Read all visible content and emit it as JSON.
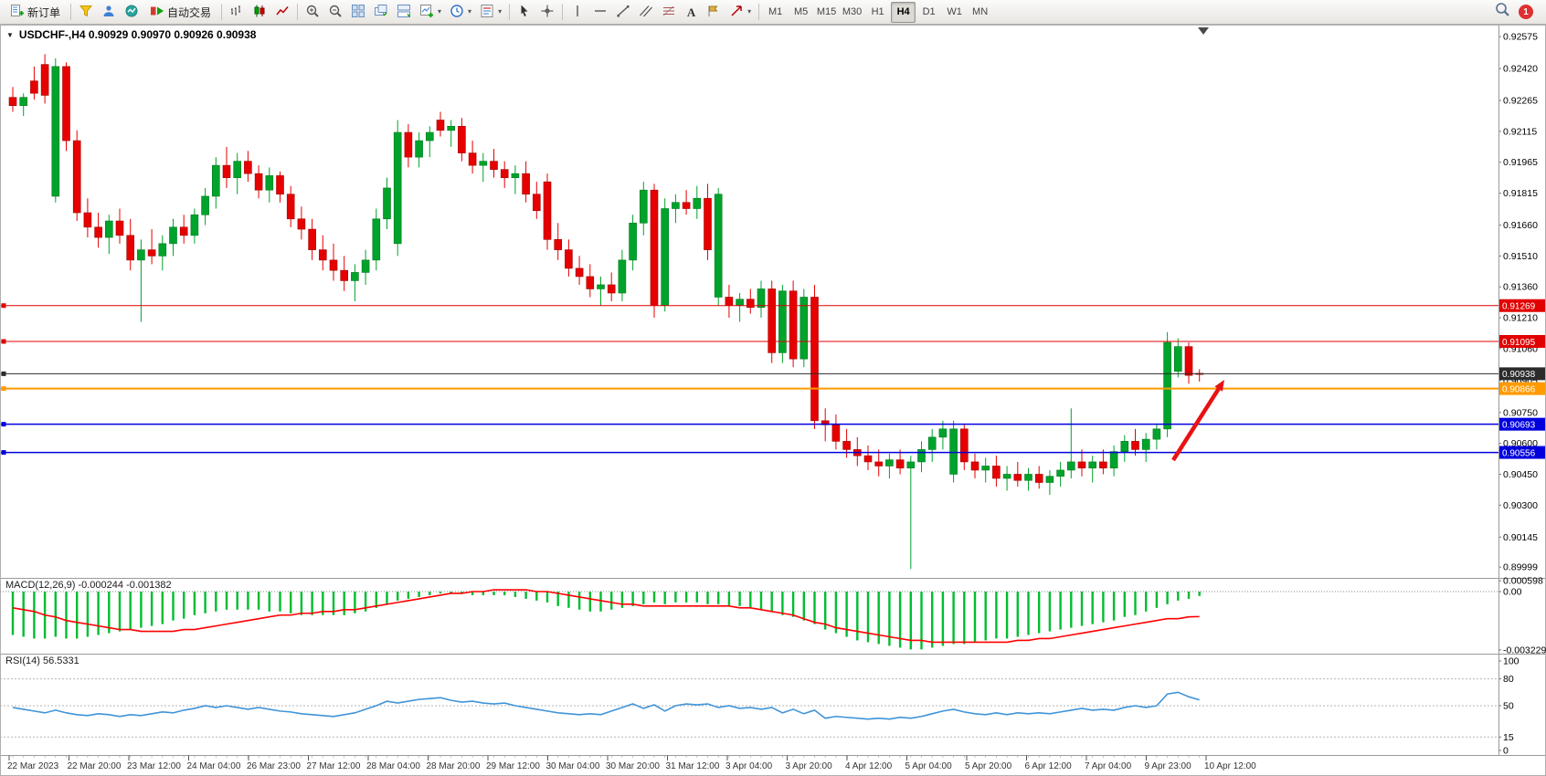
{
  "toolbar": {
    "new_order_label": "新订单",
    "auto_trading_label": "自动交易",
    "timeframes": [
      "M1",
      "M5",
      "M15",
      "M30",
      "H1",
      "H4",
      "D1",
      "W1",
      "MN"
    ],
    "active_timeframe": "H4",
    "notification_badge": "1",
    "glyphs": {
      "caret": "▾",
      "text_tool": "A"
    }
  },
  "chart_data": {
    "type": "candlestick",
    "symbol": "USDCHF",
    "timeframe": "H4",
    "title": "USDCHF-,H4  0.90929 0.90970 0.90926 0.90938",
    "collapse_marker": "▼",
    "colors": {
      "bull": "#00a32b",
      "bull_edge": "#00791f",
      "bear": "#e60000",
      "bear_edge": "#a30000",
      "macd_bar": "#00bd2f",
      "macd_signal": "#ff0000",
      "rsi_line": "#4094d8",
      "arrow": "#e81212"
    },
    "price_axis_labels": [
      "0.92575",
      "0.92420",
      "0.92265",
      "0.92115",
      "0.91965",
      "0.91815",
      "0.91660",
      "0.91510",
      "0.91360",
      "0.91210",
      "0.91060",
      "0.90905",
      "0.90750",
      "0.90600",
      "0.90450",
      "0.90300",
      "0.90145",
      "0.89999"
    ],
    "levels": [
      {
        "price": 0.91269,
        "label": "0.91269",
        "color": "#e00000",
        "width": 1
      },
      {
        "price": 0.91095,
        "label": "0.91095",
        "color": "#e00000",
        "width": 1
      },
      {
        "price": 0.90938,
        "label": "0.90938",
        "color": "#2b2b2b",
        "width": 1
      },
      {
        "price": 0.90866,
        "label": "0.90866",
        "color": "#ff9a00",
        "width": 2
      },
      {
        "price": 0.90693,
        "label": "0.90693",
        "color": "#0000dd",
        "width": 1.5
      },
      {
        "price": 0.90556,
        "label": "0.90556",
        "color": "#0000dd",
        "width": 1.5
      }
    ],
    "candles": [
      [
        0.9228,
        0.9233,
        0.9221,
        0.9224
      ],
      [
        0.9224,
        0.923,
        0.9219,
        0.9228
      ],
      [
        0.9236,
        0.9243,
        0.9227,
        0.923
      ],
      [
        0.9244,
        0.9249,
        0.9225,
        0.9229
      ],
      [
        0.918,
        0.9247,
        0.9177,
        0.9243
      ],
      [
        0.9243,
        0.9245,
        0.9202,
        0.9207
      ],
      [
        0.9207,
        0.9212,
        0.9168,
        0.9172
      ],
      [
        0.9172,
        0.9179,
        0.916,
        0.9165
      ],
      [
        0.9165,
        0.9172,
        0.9155,
        0.916
      ],
      [
        0.916,
        0.9171,
        0.9152,
        0.9168
      ],
      [
        0.9168,
        0.9174,
        0.9157,
        0.9161
      ],
      [
        0.9161,
        0.9169,
        0.9144,
        0.9149
      ],
      [
        0.9149,
        0.9159,
        0.9119,
        0.9154
      ],
      [
        0.9154,
        0.9164,
        0.9147,
        0.9151
      ],
      [
        0.9151,
        0.9161,
        0.9144,
        0.9157
      ],
      [
        0.9157,
        0.9169,
        0.9151,
        0.9165
      ],
      [
        0.9165,
        0.9171,
        0.9157,
        0.9161
      ],
      [
        0.9161,
        0.9174,
        0.9157,
        0.9171
      ],
      [
        0.9171,
        0.9184,
        0.9166,
        0.918
      ],
      [
        0.918,
        0.9199,
        0.9174,
        0.9195
      ],
      [
        0.9195,
        0.9204,
        0.9184,
        0.9189
      ],
      [
        0.9189,
        0.9201,
        0.9181,
        0.9197
      ],
      [
        0.9197,
        0.9202,
        0.9187,
        0.9191
      ],
      [
        0.9191,
        0.9195,
        0.9179,
        0.9183
      ],
      [
        0.9183,
        0.9194,
        0.9177,
        0.919
      ],
      [
        0.919,
        0.9192,
        0.9177,
        0.9181
      ],
      [
        0.9181,
        0.9185,
        0.9165,
        0.9169
      ],
      [
        0.9169,
        0.9175,
        0.9159,
        0.9164
      ],
      [
        0.9164,
        0.9169,
        0.9149,
        0.9154
      ],
      [
        0.9154,
        0.9161,
        0.9144,
        0.9149
      ],
      [
        0.9149,
        0.9157,
        0.9139,
        0.9144
      ],
      [
        0.9144,
        0.9151,
        0.9134,
        0.9139
      ],
      [
        0.9139,
        0.9147,
        0.9129,
        0.9143
      ],
      [
        0.9143,
        0.9154,
        0.9137,
        0.9149
      ],
      [
        0.9149,
        0.9174,
        0.9144,
        0.9169
      ],
      [
        0.9169,
        0.9189,
        0.9164,
        0.9184
      ],
      [
        0.9157,
        0.9217,
        0.9151,
        0.9211
      ],
      [
        0.9211,
        0.9215,
        0.9194,
        0.9199
      ],
      [
        0.9199,
        0.9211,
        0.9194,
        0.9207
      ],
      [
        0.9207,
        0.9214,
        0.9199,
        0.9211
      ],
      [
        0.9217,
        0.9221,
        0.9209,
        0.9212
      ],
      [
        0.9212,
        0.9217,
        0.9204,
        0.9214
      ],
      [
        0.9214,
        0.9218,
        0.9197,
        0.9201
      ],
      [
        0.9201,
        0.9207,
        0.9191,
        0.9195
      ],
      [
        0.9195,
        0.9201,
        0.9187,
        0.9197
      ],
      [
        0.9197,
        0.9203,
        0.9189,
        0.9193
      ],
      [
        0.9193,
        0.9197,
        0.9184,
        0.9189
      ],
      [
        0.9189,
        0.9195,
        0.9181,
        0.9191
      ],
      [
        0.9191,
        0.9197,
        0.9177,
        0.9181
      ],
      [
        0.9181,
        0.9187,
        0.9169,
        0.9173
      ],
      [
        0.9187,
        0.9191,
        0.9154,
        0.9159
      ],
      [
        0.9159,
        0.9167,
        0.9149,
        0.9154
      ],
      [
        0.9154,
        0.9159,
        0.9141,
        0.9145
      ],
      [
        0.9145,
        0.9151,
        0.9137,
        0.9141
      ],
      [
        0.9141,
        0.9147,
        0.9131,
        0.9135
      ],
      [
        0.9135,
        0.9141,
        0.9127,
        0.9137
      ],
      [
        0.9137,
        0.9143,
        0.9129,
        0.9133
      ],
      [
        0.9133,
        0.9154,
        0.9129,
        0.9149
      ],
      [
        0.9149,
        0.9171,
        0.9144,
        0.9167
      ],
      [
        0.9167,
        0.9187,
        0.9161,
        0.9183
      ],
      [
        0.9183,
        0.9186,
        0.9121,
        0.9127
      ],
      [
        0.9127,
        0.9179,
        0.9124,
        0.9174
      ],
      [
        0.9174,
        0.9181,
        0.9167,
        0.9177
      ],
      [
        0.9177,
        0.9183,
        0.9171,
        0.9174
      ],
      [
        0.9174,
        0.9185,
        0.9169,
        0.9179
      ],
      [
        0.9179,
        0.9186,
        0.9149,
        0.9154
      ],
      [
        0.9131,
        0.9184,
        0.9127,
        0.9181
      ],
      [
        0.9131,
        0.9137,
        0.9121,
        0.9127
      ],
      [
        0.9127,
        0.9133,
        0.9119,
        0.913
      ],
      [
        0.913,
        0.9135,
        0.9123,
        0.9126
      ],
      [
        0.9126,
        0.9139,
        0.9121,
        0.9135
      ],
      [
        0.9135,
        0.9139,
        0.9099,
        0.9104
      ],
      [
        0.9104,
        0.9137,
        0.9099,
        0.9134
      ],
      [
        0.9134,
        0.9139,
        0.9097,
        0.9101
      ],
      [
        0.9101,
        0.9135,
        0.9097,
        0.9131
      ],
      [
        0.9131,
        0.9137,
        0.9067,
        0.9071
      ],
      [
        0.9071,
        0.9077,
        0.9061,
        0.9069
      ],
      [
        0.9069,
        0.9074,
        0.9057,
        0.9061
      ],
      [
        0.9061,
        0.9067,
        0.9053,
        0.9057
      ],
      [
        0.9057,
        0.9063,
        0.9049,
        0.9054
      ],
      [
        0.9054,
        0.9059,
        0.9047,
        0.9051
      ],
      [
        0.9051,
        0.9057,
        0.9044,
        0.9049
      ],
      [
        0.9049,
        0.9055,
        0.9043,
        0.9052
      ],
      [
        0.9052,
        0.9057,
        0.9045,
        0.9048
      ],
      [
        0.9048,
        0.9054,
        0.8999,
        0.9051
      ],
      [
        0.9051,
        0.9061,
        0.9046,
        0.9057
      ],
      [
        0.9057,
        0.9067,
        0.9051,
        0.9063
      ],
      [
        0.9063,
        0.9071,
        0.9057,
        0.9067
      ],
      [
        0.9045,
        0.9071,
        0.9041,
        0.9067
      ],
      [
        0.9067,
        0.9069,
        0.9047,
        0.9051
      ],
      [
        0.9051,
        0.9055,
        0.9043,
        0.9047
      ],
      [
        0.9047,
        0.9053,
        0.9041,
        0.9049
      ],
      [
        0.9049,
        0.9054,
        0.9039,
        0.9043
      ],
      [
        0.9043,
        0.9049,
        0.9037,
        0.9045
      ],
      [
        0.9045,
        0.9051,
        0.9039,
        0.9042
      ],
      [
        0.9042,
        0.9048,
        0.9037,
        0.9045
      ],
      [
        0.9045,
        0.9049,
        0.9038,
        0.9041
      ],
      [
        0.9041,
        0.9047,
        0.9035,
        0.9044
      ],
      [
        0.9044,
        0.9051,
        0.9039,
        0.9047
      ],
      [
        0.9047,
        0.9077,
        0.9043,
        0.9051
      ],
      [
        0.9051,
        0.9057,
        0.9044,
        0.9048
      ],
      [
        0.9048,
        0.9054,
        0.9041,
        0.9051
      ],
      [
        0.9051,
        0.9057,
        0.9045,
        0.9048
      ],
      [
        0.9048,
        0.9059,
        0.9044,
        0.9056
      ],
      [
        0.9056,
        0.9064,
        0.9051,
        0.9061
      ],
      [
        0.9061,
        0.9067,
        0.9054,
        0.9057
      ],
      [
        0.9057,
        0.9065,
        0.9051,
        0.9062
      ],
      [
        0.9062,
        0.9069,
        0.9057,
        0.9067
      ],
      [
        0.9067,
        0.9114,
        0.9063,
        0.9109
      ],
      [
        0.9095,
        0.9111,
        0.9092,
        0.9107
      ],
      [
        0.9107,
        0.9109,
        0.9089,
        0.9093
      ],
      [
        0.9094,
        0.9096,
        0.909,
        0.90938
      ]
    ],
    "macd": {
      "label": "MACD(12,26,9) -0.000244 -0.001382",
      "axis_labels": [
        "0.000598",
        "0.00",
        "-0.003229"
      ],
      "histogram": [
        -0.0024,
        -0.0025,
        -0.0026,
        -0.0026,
        -0.0025,
        -0.0026,
        -0.0026,
        -0.0025,
        -0.0024,
        -0.0023,
        -0.0022,
        -0.0021,
        -0.002,
        -0.0019,
        -0.0018,
        -0.0016,
        -0.0015,
        -0.0013,
        -0.0012,
        -0.0011,
        -0.001,
        -0.001,
        -0.001,
        -0.001,
        -0.0011,
        -0.0011,
        -0.0012,
        -0.0013,
        -0.0013,
        -0.0013,
        -0.0013,
        -0.0013,
        -0.0012,
        -0.0011,
        -0.0009,
        -0.0007,
        -0.0005,
        -0.0004,
        -0.0003,
        -0.0002,
        -0.0001,
        -0.0001,
        -0.0001,
        -0.0002,
        -0.0002,
        -0.0002,
        -0.0002,
        -0.0003,
        -0.0004,
        -0.0005,
        -0.0006,
        -0.0008,
        -0.0009,
        -0.001,
        -0.0011,
        -0.0011,
        -0.001,
        -0.0009,
        -0.0008,
        -0.0007,
        -0.0006,
        -0.0007,
        -0.0006,
        -0.0006,
        -0.0006,
        -0.0007,
        -0.0007,
        -0.0008,
        -0.0008,
        -0.0009,
        -0.001,
        -0.0011,
        -0.0013,
        -0.0014,
        -0.0016,
        -0.0018,
        -0.0021,
        -0.0023,
        -0.0025,
        -0.0027,
        -0.0028,
        -0.0029,
        -0.003,
        -0.0031,
        -0.0032,
        -0.0032,
        -0.0031,
        -0.003,
        -0.0029,
        -0.0029,
        -0.0028,
        -0.0027,
        -0.0026,
        -0.0026,
        -0.0025,
        -0.0024,
        -0.0023,
        -0.0022,
        -0.0021,
        -0.002,
        -0.0019,
        -0.0018,
        -0.0017,
        -0.0016,
        -0.0014,
        -0.0013,
        -0.0011,
        -0.0009,
        -0.0007,
        -0.0005,
        -0.0004,
        -0.000244
      ],
      "signal": [
        -0.0009,
        -0.001,
        -0.0011,
        -0.0013,
        -0.0014,
        -0.0016,
        -0.0017,
        -0.0018,
        -0.0019,
        -0.002,
        -0.0021,
        -0.0021,
        -0.0022,
        -0.0022,
        -0.0022,
        -0.0022,
        -0.0021,
        -0.0021,
        -0.002,
        -0.0019,
        -0.0018,
        -0.0017,
        -0.0016,
        -0.0015,
        -0.0014,
        -0.0013,
        -0.0013,
        -0.0012,
        -0.0012,
        -0.0011,
        -0.0011,
        -0.001,
        -0.001,
        -0.0009,
        -0.0008,
        -0.0007,
        -0.0006,
        -0.0005,
        -0.0004,
        -0.0003,
        -0.0002,
        -0.0001,
        -0.0001,
        0.0,
        0.0,
        0.0001,
        0.0001,
        0.0001,
        0.0001,
        0.0,
        0.0,
        -0.0001,
        -0.0002,
        -0.0003,
        -0.0004,
        -0.0005,
        -0.0006,
        -0.0007,
        -0.0007,
        -0.0008,
        -0.0008,
        -0.0008,
        -0.0008,
        -0.0008,
        -0.0008,
        -0.0008,
        -0.0008,
        -0.0008,
        -0.0009,
        -0.0009,
        -0.001,
        -0.0011,
        -0.0012,
        -0.0013,
        -0.0015,
        -0.0017,
        -0.0018,
        -0.002,
        -0.0021,
        -0.0022,
        -0.0023,
        -0.0024,
        -0.0025,
        -0.0026,
        -0.0027,
        -0.0027,
        -0.0028,
        -0.0028,
        -0.0028,
        -0.0028,
        -0.0028,
        -0.0028,
        -0.0028,
        -0.0028,
        -0.0027,
        -0.0027,
        -0.0026,
        -0.0026,
        -0.0025,
        -0.0024,
        -0.0023,
        -0.0022,
        -0.0021,
        -0.002,
        -0.0019,
        -0.0018,
        -0.0017,
        -0.0016,
        -0.0015,
        -0.0015,
        -0.0014,
        -0.001382
      ]
    },
    "rsi": {
      "label": "RSI(14) 56.5331",
      "axis_labels": [
        "100",
        "80",
        "50",
        "15",
        "0"
      ],
      "levels": [
        80,
        50,
        15
      ],
      "values": [
        48,
        46,
        44,
        42,
        45,
        42,
        40,
        39,
        41,
        40,
        38,
        40,
        39,
        41,
        43,
        42,
        45,
        47,
        50,
        48,
        50,
        48,
        46,
        48,
        46,
        44,
        43,
        41,
        40,
        39,
        38,
        40,
        42,
        46,
        50,
        55,
        53,
        55,
        57,
        58,
        59,
        56,
        54,
        55,
        53,
        52,
        53,
        50,
        48,
        46,
        44,
        42,
        41,
        40,
        41,
        40,
        44,
        48,
        52,
        47,
        51,
        44,
        50,
        52,
        51,
        52,
        48,
        50,
        47,
        48,
        46,
        48,
        42,
        46,
        41,
        45,
        36,
        38,
        37,
        36,
        35,
        36,
        35,
        37,
        36,
        38,
        41,
        44,
        46,
        43,
        41,
        40,
        42,
        40,
        42,
        41,
        42,
        41,
        43,
        45,
        47,
        45,
        46,
        45,
        48,
        50,
        48,
        50,
        63,
        65,
        60,
        56.5
      ]
    },
    "time_axis": [
      "22 Mar 2023",
      "22 Mar 20:00",
      "23 Mar 12:00",
      "24 Mar 04:00",
      "26 Mar 23:00",
      "27 Mar 12:00",
      "28 Mar 04:00",
      "28 Mar 20:00",
      "29 Mar 12:00",
      "30 Mar 04:00",
      "30 Mar 20:00",
      "31 Mar 12:00",
      "3 Apr 04:00",
      "3 Apr 20:00",
      "4 Apr 12:00",
      "5 Apr 04:00",
      "5 Apr 20:00",
      "6 Apr 12:00",
      "7 Apr 04:00",
      "9 Apr 23:00",
      "10 Apr 12:00"
    ]
  }
}
